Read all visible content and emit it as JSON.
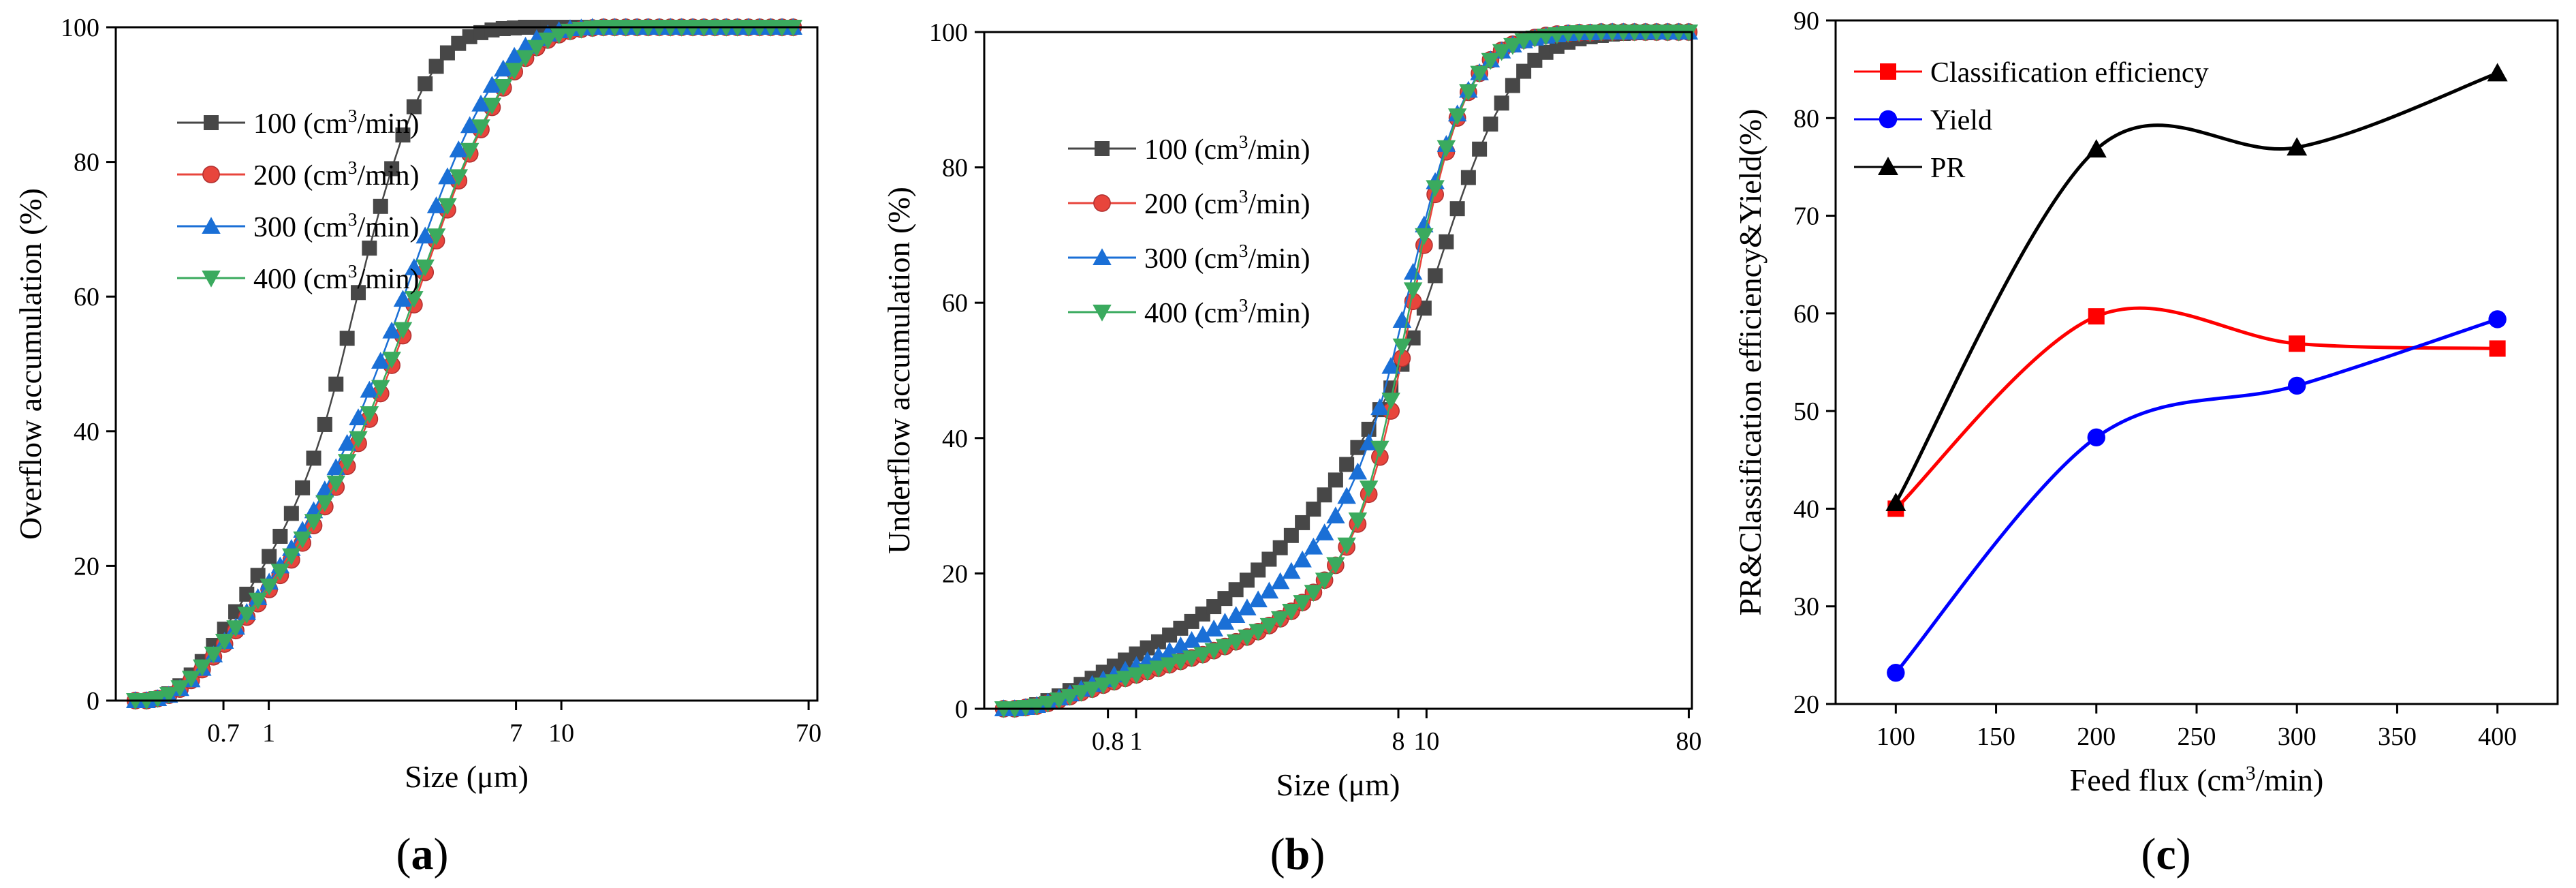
{
  "colors": {
    "s100": "#474747",
    "s200": "#e8453c",
    "s300": "#1a6fd6",
    "s400": "#3aaa5e",
    "ce": "#ff0000",
    "yield": "#0000ff",
    "pr": "#000000",
    "axis": "#000000"
  },
  "chart_data": [
    {
      "id": "a",
      "type": "line",
      "panel_label_prefix": "(",
      "panel_label_letter": "a",
      "panel_label_suffix": ")",
      "xscale": "log",
      "xlim": [
        0.3,
        75
      ],
      "ylim": [
        0,
        100
      ],
      "xlabel": "Size (μm)",
      "ylabel": "Overflow accumulation (%)",
      "xticks": [
        0.7,
        1,
        7,
        10,
        70
      ],
      "xtick_labels": [
        "0.7",
        "1",
        "7",
        "10",
        "70"
      ],
      "yticks": [
        0,
        20,
        40,
        60,
        80,
        100
      ],
      "ytick_labels": [
        "0",
        "20",
        "40",
        "60",
        "80",
        "100"
      ],
      "legend_position": "top-left",
      "x": [
        0.35,
        0.382,
        0.417,
        0.455,
        0.497,
        0.543,
        0.592,
        0.647,
        0.706,
        0.771,
        0.841,
        0.918,
        1.003,
        1.094,
        1.195,
        1.304,
        1.424,
        1.554,
        1.697,
        1.853,
        2.023,
        2.208,
        2.411,
        2.632,
        2.873,
        3.137,
        3.424,
        3.738,
        4.081,
        4.455,
        4.864,
        5.31,
        5.797,
        6.329,
        6.909,
        7.543,
        8.235,
        8.99,
        9.814,
        10.714,
        11.697,
        12.77,
        13.941,
        15.22,
        16.616,
        18.14,
        19.804,
        21.62,
        23.603,
        25.768,
        28.132,
        30.712,
        33.529,
        36.604,
        39.962,
        43.627,
        47.629,
        51.997,
        56.767,
        61.973
      ],
      "series": [
        {
          "name": "100 (cm³/min)",
          "legend_value": "100 (cm",
          "legend_unit": "/min)",
          "legend_exp": "3",
          "color_key": "s100",
          "marker": "square",
          "values": [
            0.0,
            0.0,
            0.3,
            1.0,
            2.2,
            3.8,
            5.8,
            8.2,
            10.6,
            13.2,
            15.8,
            18.6,
            21.4,
            24.4,
            27.8,
            31.6,
            36.0,
            41.0,
            47.0,
            53.8,
            60.6,
            67.2,
            73.4,
            79.0,
            84.0,
            88.2,
            91.6,
            94.2,
            96.2,
            97.6,
            98.6,
            99.2,
            99.6,
            99.8,
            99.9,
            100,
            100,
            100,
            100,
            100,
            100,
            100,
            100,
            100,
            100,
            100,
            100,
            100,
            100,
            100,
            100,
            100,
            100,
            100,
            100,
            100,
            100,
            100,
            100,
            100
          ]
        },
        {
          "name": "200 (cm³/min)",
          "legend_value": "200 (cm",
          "legend_unit": "/min)",
          "legend_exp": "3",
          "color_key": "s200",
          "marker": "circle",
          "values": [
            0.0,
            0.0,
            0.3,
            0.8,
            1.7,
            3.0,
            4.6,
            6.5,
            8.4,
            10.4,
            12.4,
            14.4,
            16.5,
            18.6,
            20.9,
            23.4,
            26.0,
            28.8,
            31.7,
            34.8,
            38.2,
            41.8,
            45.6,
            49.8,
            54.2,
            58.8,
            63.6,
            68.3,
            72.9,
            77.2,
            81.2,
            84.8,
            88.1,
            91.0,
            93.4,
            95.4,
            97.0,
            98.1,
            98.9,
            99.4,
            99.7,
            99.9,
            100,
            100,
            100,
            100,
            100,
            100,
            100,
            100,
            100,
            100,
            100,
            100,
            100,
            100,
            100,
            100,
            100,
            100
          ]
        },
        {
          "name": "300 (cm³/min)",
          "legend_value": "300 (cm",
          "legend_unit": "/min)",
          "legend_exp": "3",
          "color_key": "s300",
          "marker": "triangle-up",
          "values": [
            0.0,
            0.0,
            0.3,
            0.8,
            1.8,
            3.1,
            4.8,
            6.8,
            8.8,
            10.9,
            13.1,
            15.3,
            17.6,
            20.0,
            22.6,
            25.3,
            28.2,
            31.3,
            34.6,
            38.2,
            42.0,
            46.1,
            50.4,
            54.9,
            59.6,
            64.3,
            69.0,
            73.5,
            77.8,
            81.8,
            85.4,
            88.6,
            91.4,
            93.8,
            95.7,
            97.2,
            98.3,
            99.0,
            99.5,
            99.8,
            99.9,
            100,
            100,
            100,
            100,
            100,
            100,
            100,
            100,
            100,
            100,
            100,
            100,
            100,
            100,
            100,
            100,
            100,
            100,
            100
          ]
        },
        {
          "name": "400 (cm³/min)",
          "legend_value": "400 (cm",
          "legend_unit": "/min)",
          "legend_exp": "3",
          "color_key": "s400",
          "marker": "triangle-down",
          "values": [
            0.0,
            0.0,
            0.3,
            0.9,
            1.9,
            3.3,
            5.0,
            6.9,
            8.8,
            10.8,
            12.8,
            14.9,
            17.0,
            19.2,
            21.5,
            24.0,
            26.6,
            29.4,
            32.3,
            35.5,
            38.9,
            42.6,
            46.5,
            50.7,
            55.1,
            59.7,
            64.4,
            69.0,
            73.5,
            77.8,
            81.7,
            85.2,
            88.4,
            91.2,
            93.6,
            95.5,
            97.0,
            98.1,
            98.9,
            99.4,
            99.7,
            99.9,
            100,
            100,
            100,
            100,
            100,
            100,
            100,
            100,
            100,
            100,
            100,
            100,
            100,
            100,
            100,
            100,
            100,
            100
          ]
        }
      ]
    },
    {
      "id": "b",
      "type": "line",
      "panel_label_prefix": "(",
      "panel_label_letter": "b",
      "panel_label_suffix": ")",
      "xscale": "log",
      "xlim": [
        0.3,
        82
      ],
      "ylim": [
        0,
        100
      ],
      "xlabel": "Size (μm)",
      "ylabel": "Underflow accumulation (%)",
      "xticks": [
        0.8,
        1,
        8,
        10,
        80
      ],
      "xtick_labels": [
        "0.8",
        "1",
        "8",
        "10",
        "80"
      ],
      "yticks": [
        0,
        20,
        40,
        60,
        80,
        100
      ],
      "ytick_labels": [
        "0",
        "20",
        "40",
        "60",
        "80",
        "100"
      ],
      "legend_position": "top-left",
      "x": [
        0.35,
        0.382,
        0.417,
        0.455,
        0.497,
        0.543,
        0.592,
        0.647,
        0.706,
        0.771,
        0.841,
        0.918,
        1.003,
        1.094,
        1.195,
        1.304,
        1.424,
        1.554,
        1.697,
        1.853,
        2.023,
        2.208,
        2.411,
        2.632,
        2.873,
        3.137,
        3.424,
        3.738,
        4.081,
        4.455,
        4.864,
        5.31,
        5.797,
        6.329,
        6.909,
        7.543,
        8.235,
        8.99,
        9.814,
        10.714,
        11.697,
        12.77,
        13.941,
        15.22,
        16.616,
        18.14,
        19.804,
        21.62,
        23.603,
        25.768,
        28.132,
        30.712,
        33.529,
        36.604,
        39.962,
        43.627,
        47.629,
        51.997,
        56.767,
        61.973,
        67.657,
        73.862,
        80.0
      ],
      "series": [
        {
          "name": "100 (cm³/min)",
          "legend_value": "100 (cm",
          "legend_unit": "/min)",
          "legend_exp": "3",
          "color_key": "s100",
          "marker": "square",
          "values": [
            0.0,
            0.0,
            0.2,
            0.6,
            1.2,
            1.9,
            2.7,
            3.6,
            4.5,
            5.4,
            6.3,
            7.2,
            8.1,
            9.0,
            9.9,
            10.9,
            11.9,
            12.9,
            14.0,
            15.1,
            16.3,
            17.6,
            19.0,
            20.5,
            22.1,
            23.8,
            25.6,
            27.5,
            29.5,
            31.6,
            33.8,
            36.1,
            38.6,
            41.3,
            44.2,
            47.4,
            50.9,
            54.8,
            59.2,
            64.0,
            69.0,
            73.9,
            78.5,
            82.7,
            86.4,
            89.5,
            92.1,
            94.2,
            95.8,
            97.0,
            97.9,
            98.5,
            99.0,
            99.3,
            99.5,
            99.7,
            99.8,
            99.9,
            99.9,
            100,
            100,
            100,
            100
          ]
        },
        {
          "name": "200 (cm³/min)",
          "legend_value": "200 (cm",
          "legend_unit": "/min)",
          "legend_exp": "3",
          "color_key": "s200",
          "marker": "circle",
          "values": [
            0.0,
            0.0,
            0.2,
            0.4,
            0.8,
            1.3,
            1.8,
            2.4,
            2.9,
            3.5,
            4.0,
            4.5,
            5.0,
            5.5,
            6.0,
            6.5,
            7.0,
            7.5,
            8.0,
            8.6,
            9.2,
            9.9,
            10.6,
            11.4,
            12.3,
            13.3,
            14.4,
            15.7,
            17.2,
            19.0,
            21.2,
            23.9,
            27.3,
            31.7,
            37.2,
            44.0,
            51.8,
            60.2,
            68.5,
            76.0,
            82.3,
            87.3,
            91.1,
            93.9,
            95.9,
            97.3,
            98.2,
            98.8,
            99.2,
            99.5,
            99.7,
            99.8,
            99.9,
            99.9,
            100,
            100,
            100,
            100,
            100,
            100,
            100,
            100,
            100
          ]
        },
        {
          "name": "300 (cm³/min)",
          "legend_value": "300 (cm",
          "legend_unit": "/min)",
          "legend_exp": "3",
          "color_key": "s300",
          "marker": "triangle-up",
          "values": [
            0.0,
            0.0,
            0.2,
            0.5,
            1.0,
            1.6,
            2.2,
            2.9,
            3.6,
            4.3,
            5.0,
            5.7,
            6.4,
            7.1,
            7.8,
            8.5,
            9.3,
            10.1,
            10.9,
            11.8,
            12.8,
            13.8,
            14.9,
            16.1,
            17.4,
            18.8,
            20.3,
            22.0,
            23.9,
            26.0,
            28.5,
            31.4,
            35.0,
            39.3,
            44.5,
            50.6,
            57.4,
            64.5,
            71.5,
            77.9,
            83.4,
            87.9,
            91.4,
            94.0,
            95.9,
            97.2,
            98.1,
            98.7,
            99.1,
            99.4,
            99.6,
            99.8,
            99.9,
            99.9,
            100,
            100,
            100,
            100,
            100,
            100,
            100,
            100,
            100
          ]
        },
        {
          "name": "400 (cm³/min)",
          "legend_value": "400 (cm",
          "legend_unit": "/min)",
          "legend_exp": "3",
          "color_key": "s400",
          "marker": "triangle-down",
          "values": [
            0.0,
            0.0,
            0.2,
            0.4,
            0.8,
            1.3,
            1.8,
            2.4,
            2.9,
            3.5,
            4.0,
            4.5,
            5.0,
            5.5,
            6.0,
            6.5,
            7.0,
            7.5,
            8.0,
            8.6,
            9.2,
            9.9,
            10.6,
            11.4,
            12.3,
            13.3,
            14.4,
            15.7,
            17.2,
            19.0,
            21.3,
            24.2,
            27.9,
            32.6,
            38.5,
            45.6,
            53.6,
            61.9,
            69.9,
            77.0,
            82.9,
            87.6,
            91.2,
            93.9,
            95.8,
            97.1,
            98.0,
            98.7,
            99.1,
            99.4,
            99.6,
            99.8,
            99.9,
            99.9,
            100,
            100,
            100,
            100,
            100,
            100,
            100,
            100,
            100
          ]
        }
      ]
    },
    {
      "id": "c",
      "type": "line",
      "panel_label_prefix": "(",
      "panel_label_letter": "c",
      "panel_label_suffix": ")",
      "xscale": "linear",
      "xlim": [
        70,
        430
      ],
      "ylim": [
        20,
        90
      ],
      "xlabel_pre": "Feed flux (cm",
      "xlabel_exp": "3",
      "xlabel_post": "/min)",
      "ylabel": "PR&Classification efficiency&Yield(%)",
      "xticks": [
        100,
        150,
        200,
        250,
        300,
        350,
        400
      ],
      "xtick_labels": [
        "100",
        "150",
        "200",
        "250",
        "300",
        "350",
        "400"
      ],
      "yticks": [
        20,
        30,
        40,
        50,
        60,
        70,
        80,
        90
      ],
      "ytick_labels": [
        "20",
        "30",
        "40",
        "50",
        "60",
        "70",
        "80",
        "90"
      ],
      "legend_position": "top-left",
      "x": [
        100,
        200,
        300,
        400
      ],
      "series": [
        {
          "name": "Classification efficiency",
          "color_key": "ce",
          "marker": "square",
          "values": [
            40.0,
            59.7,
            56.9,
            56.4
          ]
        },
        {
          "name": "Yield",
          "color_key": "yield",
          "marker": "circle",
          "values": [
            23.2,
            47.3,
            52.6,
            59.4
          ]
        },
        {
          "name": "PR",
          "color_key": "pr",
          "marker": "triangle-up",
          "values": [
            40.6,
            76.8,
            77.0,
            84.6
          ]
        }
      ]
    }
  ]
}
